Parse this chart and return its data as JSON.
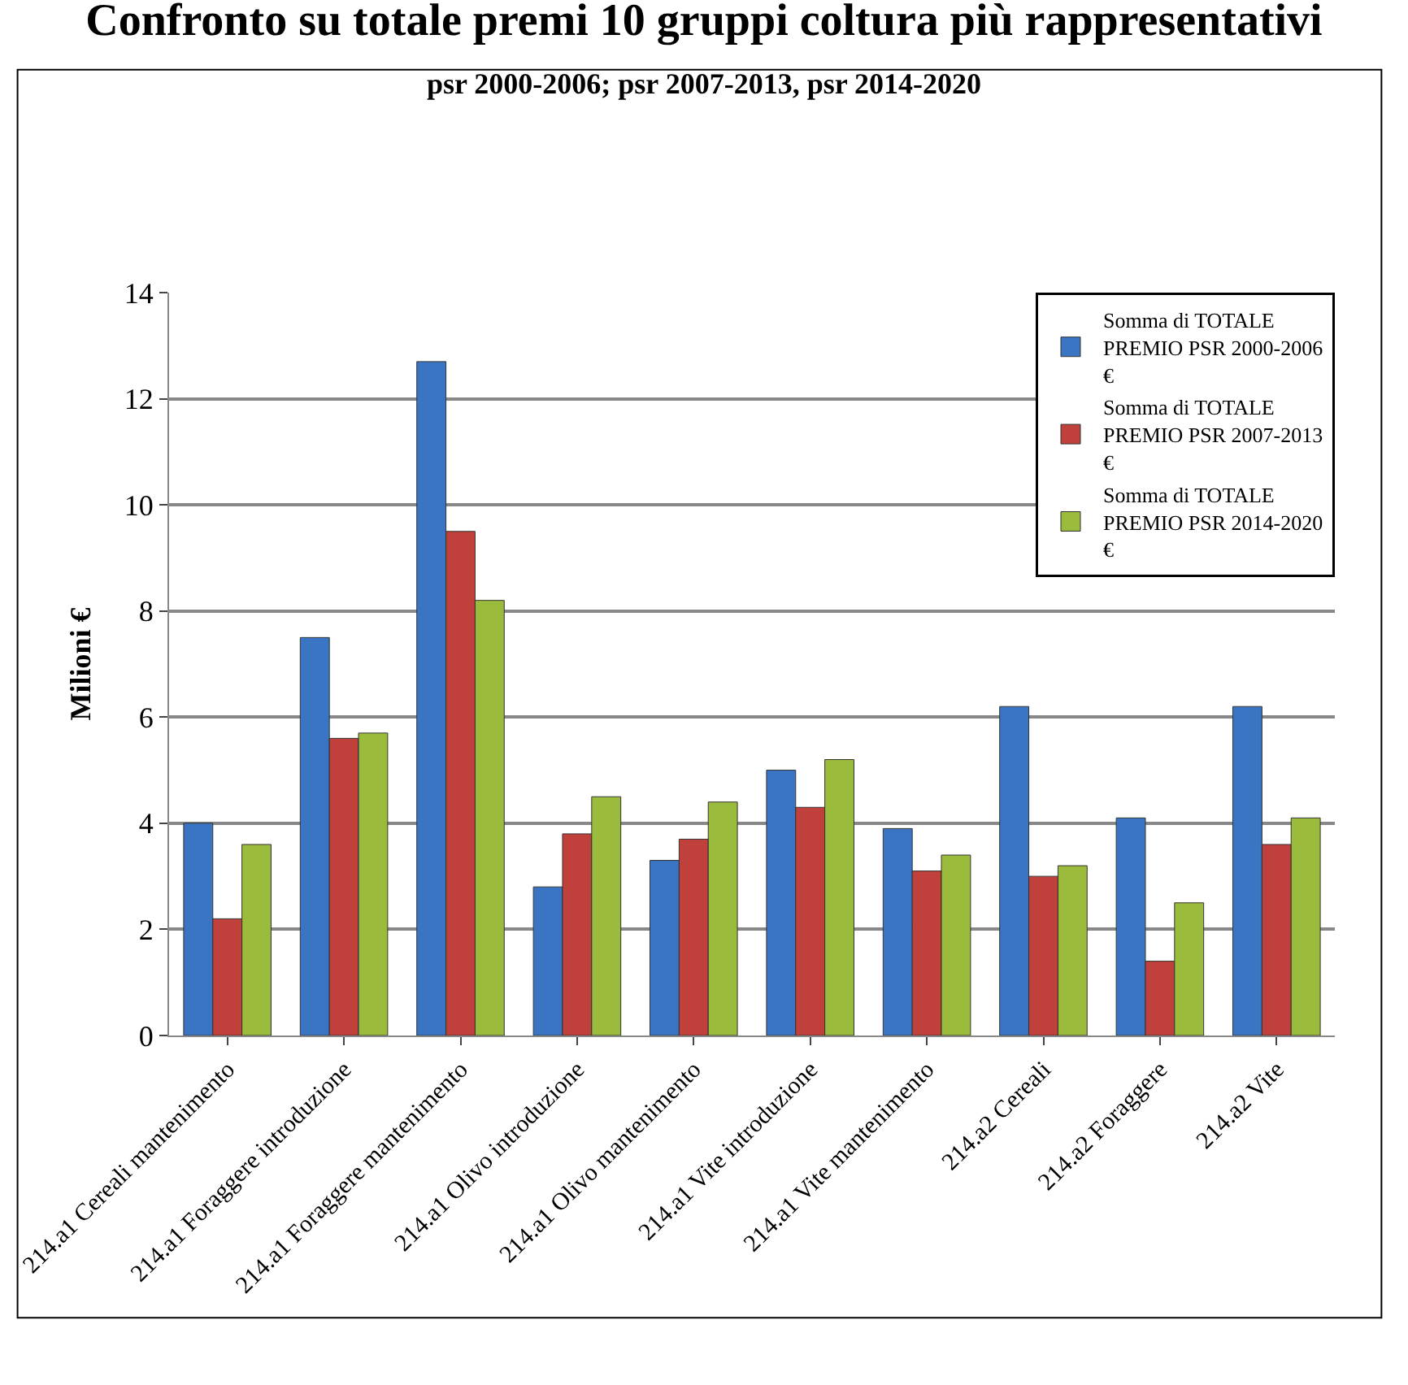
{
  "chart_data": {
    "type": "bar",
    "title": "Confronto su totale premi 10 gruppi coltura più rappresentativi",
    "subtitle": "psr 2000-2006; psr 2007-2013, psr 2014-2020",
    "ylabel": "Milioni €",
    "categories": [
      "214.a1 Cereali mantenimento",
      "214.a1 Foraggere introduzione",
      "214.a1 Foraggere mantenimento",
      "214.a1 Olivo introduzione",
      "214.a1 Olivo mantenimento",
      "214.a1 Vite introduzione",
      "214.a1 Vite mantenimento",
      "214.a2 Cereali",
      "214.a2 Foraggere",
      "214.a2 Vite"
    ],
    "series": [
      {
        "name": "Somma di TOTALE PREMIO PSR 2000-2006 €",
        "color": "#3a75c4",
        "values": [
          4.0,
          7.5,
          12.7,
          2.8,
          3.3,
          5.0,
          3.9,
          6.2,
          4.1,
          6.2
        ]
      },
      {
        "name": "Somma di TOTALE PREMIO PSR 2007-2013 €",
        "color": "#c0403b",
        "values": [
          2.2,
          5.6,
          9.5,
          3.8,
          3.7,
          4.3,
          3.1,
          3.0,
          1.4,
          3.6
        ]
      },
      {
        "name": "Somma di TOTALE PREMIO PSR 2014-2020 €",
        "color": "#9bbb3c",
        "values": [
          3.6,
          5.7,
          8.2,
          4.5,
          4.4,
          5.2,
          3.4,
          3.2,
          2.5,
          4.1
        ]
      }
    ],
    "ylim": [
      0,
      14
    ],
    "yticks": [
      0,
      2,
      4,
      6,
      8,
      10,
      12,
      14
    ],
    "grid": "y",
    "legend": "top right"
  }
}
